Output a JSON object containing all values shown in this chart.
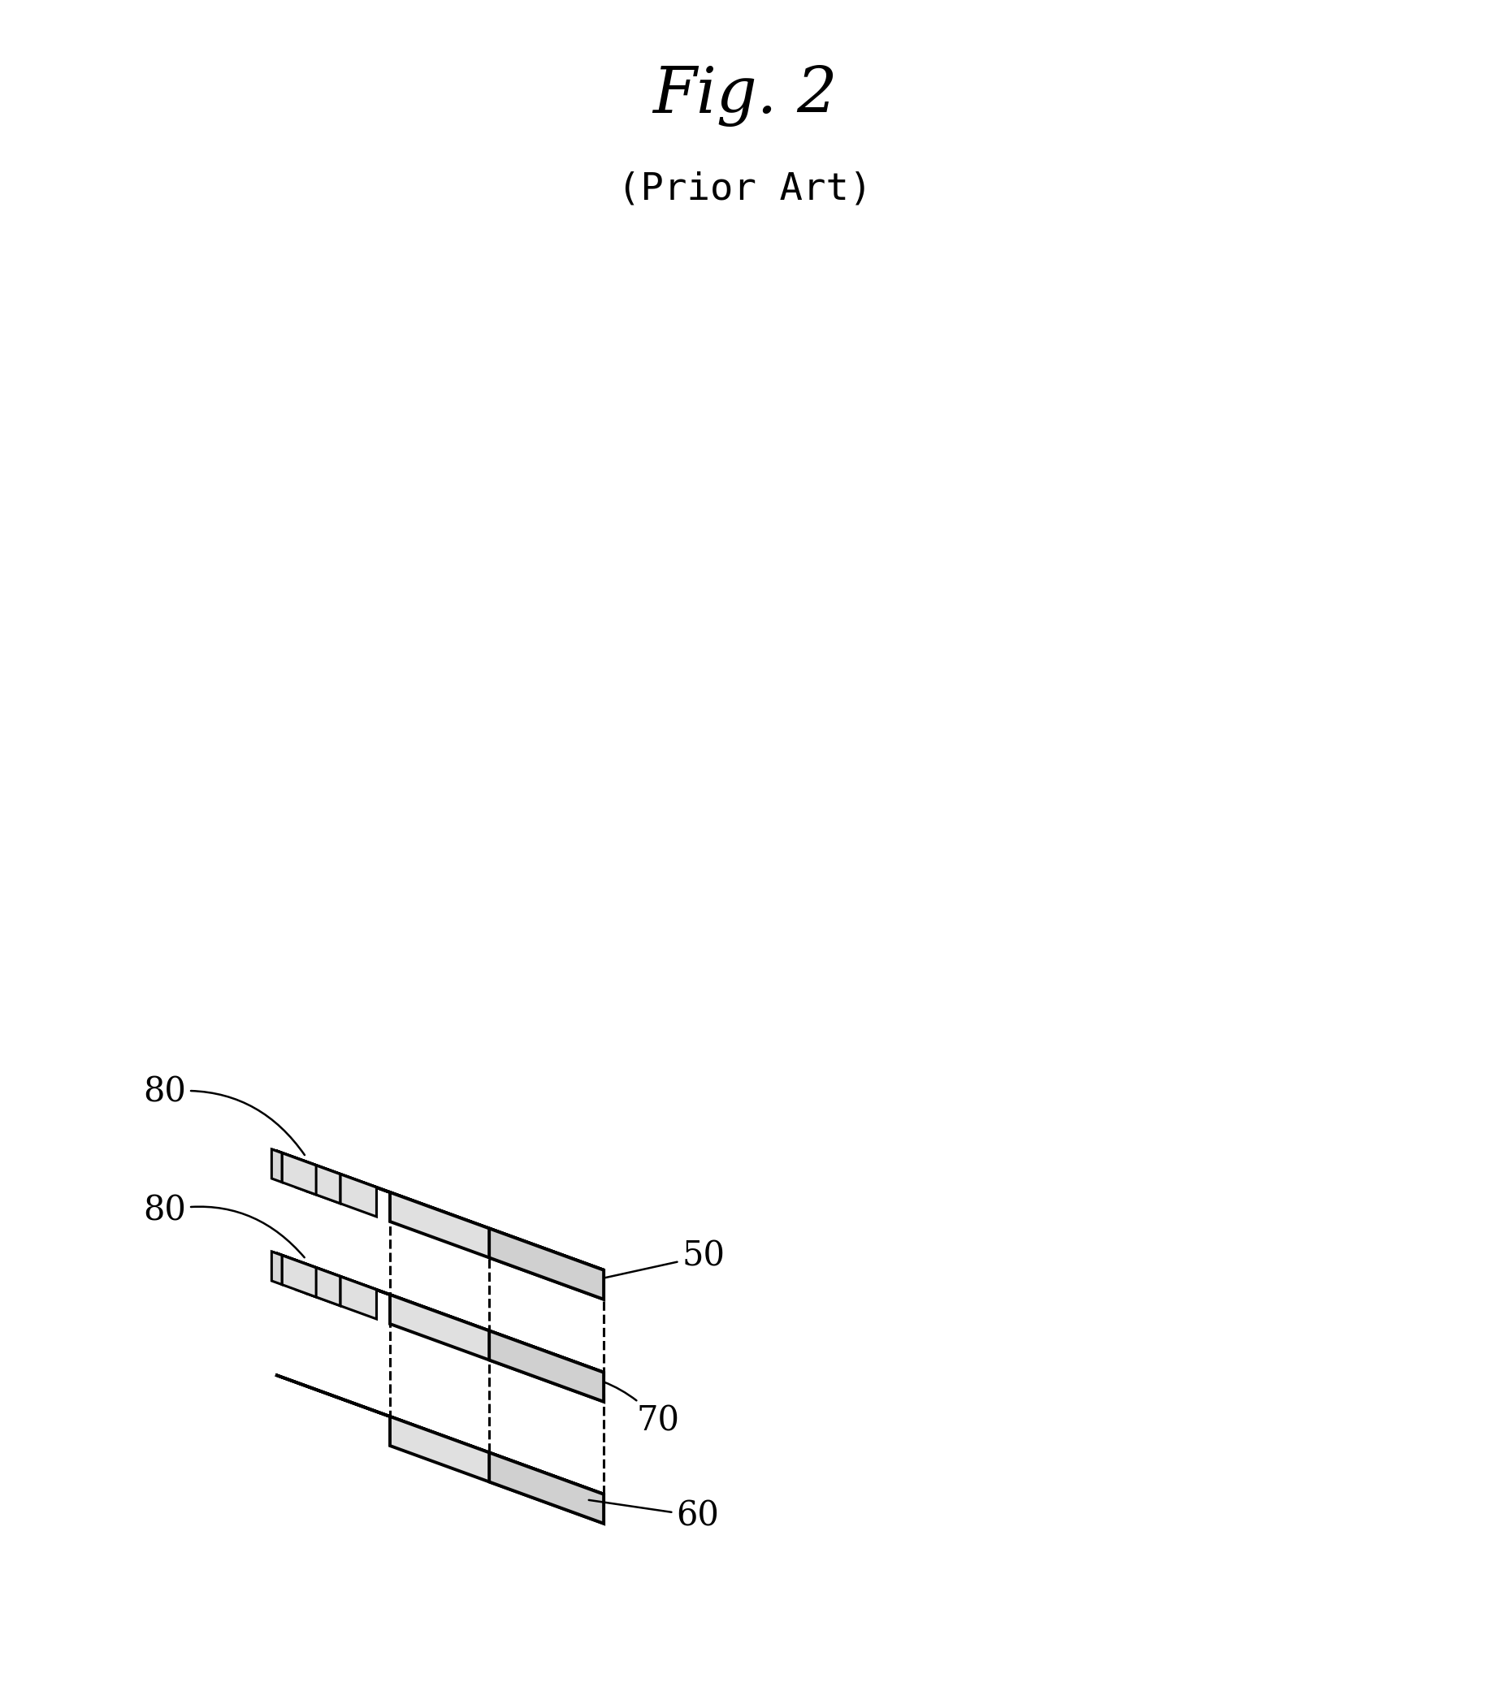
{
  "title": "Fig. 2",
  "subtitle": "(Prior Art)",
  "background_color": "#ffffff",
  "line_color": "#000000",
  "title_fontsize": 56,
  "subtitle_fontsize": 34,
  "label_fontsize": 30,
  "fig_width": 18.34,
  "fig_height": 20.98
}
